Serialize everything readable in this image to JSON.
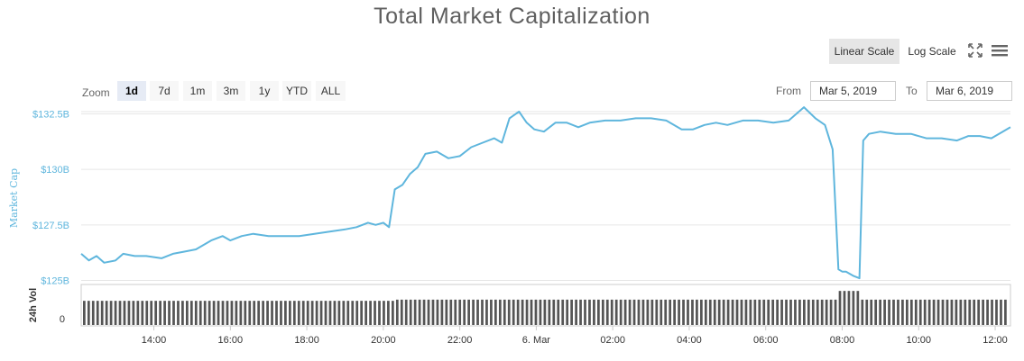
{
  "title": "Total Market Capitalization",
  "scale": {
    "linear_label": "Linear Scale",
    "log_label": "Log Scale",
    "active": "linear"
  },
  "icons": {
    "fullscreen": "fullscreen-icon",
    "menu": "hamburger-menu-icon"
  },
  "zoom": {
    "label": "Zoom",
    "buttons": [
      "1d",
      "7d",
      "1m",
      "3m",
      "1y",
      "YTD",
      "ALL"
    ],
    "active": "1d"
  },
  "range": {
    "from_label": "From",
    "from_value": "Mar 5, 2019",
    "to_label": "To",
    "to_value": "Mar 6, 2019"
  },
  "colors": {
    "line": "#5fb6dd",
    "axis_label": "#5fb6dd",
    "volume_bar": "#555555",
    "grid": "#e6e6e6"
  },
  "chart_data": {
    "type": "line",
    "ylabel": "Market Cap",
    "ytick_labels": [
      "$125B",
      "$127.5B",
      "$130B",
      "$132.5B"
    ],
    "ytick_values": [
      125,
      127.5,
      130,
      132.5
    ],
    "ylim": [
      124.9,
      132.6
    ],
    "xtick_labels": [
      "14:00",
      "16:00",
      "18:00",
      "20:00",
      "22:00",
      "6. Mar",
      "02:00",
      "04:00",
      "06:00",
      "08:00",
      "10:00",
      "12:00"
    ],
    "xtick_hours": [
      14,
      16,
      18,
      20,
      22,
      24,
      26,
      28,
      30,
      32,
      34,
      36
    ],
    "xlim_hours": [
      12.1,
      36.4
    ],
    "series": [
      {
        "x_hours": [
          12.1,
          12.3,
          12.5,
          12.7,
          13.0,
          13.2,
          13.5,
          13.8,
          14.2,
          14.5,
          14.8,
          15.1,
          15.5,
          15.8,
          16.0,
          16.3,
          16.6,
          17.0,
          17.4,
          17.8,
          18.2,
          18.6,
          19.0,
          19.3,
          19.6,
          19.8,
          20.0,
          20.15,
          20.3,
          20.5,
          20.7,
          20.9,
          21.1,
          21.4,
          21.7,
          22.0,
          22.3,
          22.6,
          22.9,
          23.1,
          23.3,
          23.55,
          23.75,
          23.95,
          24.2,
          24.5,
          24.8,
          25.1,
          25.4,
          25.8,
          26.2,
          26.6,
          27.0,
          27.4,
          27.8,
          28.1,
          28.4,
          28.7,
          29.0,
          29.4,
          29.8,
          30.2,
          30.6,
          31.0,
          31.3,
          31.55,
          31.75,
          31.9,
          32.0,
          32.1,
          32.3,
          32.45,
          32.55,
          32.7,
          33.0,
          33.4,
          33.8,
          34.2,
          34.6,
          35.0,
          35.3,
          35.6,
          35.9,
          36.2,
          36.4
        ],
        "values": [
          126.2,
          125.9,
          126.1,
          125.8,
          125.9,
          126.2,
          126.1,
          126.1,
          126.0,
          126.2,
          126.3,
          126.4,
          126.8,
          127.0,
          126.8,
          127.0,
          127.1,
          127.0,
          127.0,
          127.0,
          127.1,
          127.2,
          127.3,
          127.4,
          127.6,
          127.5,
          127.6,
          127.4,
          129.1,
          129.3,
          129.8,
          130.1,
          130.7,
          130.8,
          130.5,
          130.6,
          131.0,
          131.2,
          131.4,
          131.2,
          132.3,
          132.6,
          132.1,
          131.8,
          131.7,
          132.1,
          132.1,
          131.9,
          132.1,
          132.2,
          132.2,
          132.3,
          132.3,
          132.2,
          131.8,
          131.8,
          132.0,
          132.1,
          132.0,
          132.2,
          132.2,
          132.1,
          132.2,
          132.8,
          132.3,
          132.0,
          130.9,
          125.5,
          125.4,
          125.4,
          125.2,
          125.1,
          131.3,
          131.6,
          131.7,
          131.6,
          131.6,
          131.4,
          131.4,
          131.3,
          131.5,
          131.5,
          131.4,
          131.7,
          131.9
        ]
      }
    ],
    "volume": {
      "ylabel": "24h Vol",
      "ytick_label": "0",
      "bar_count": 207,
      "base_level": 0.64,
      "early_level": 0.61,
      "spike_hours": [
        31.9,
        32.5
      ],
      "spike_level": 0.86
    },
    "grid": true,
    "legend": "none"
  }
}
